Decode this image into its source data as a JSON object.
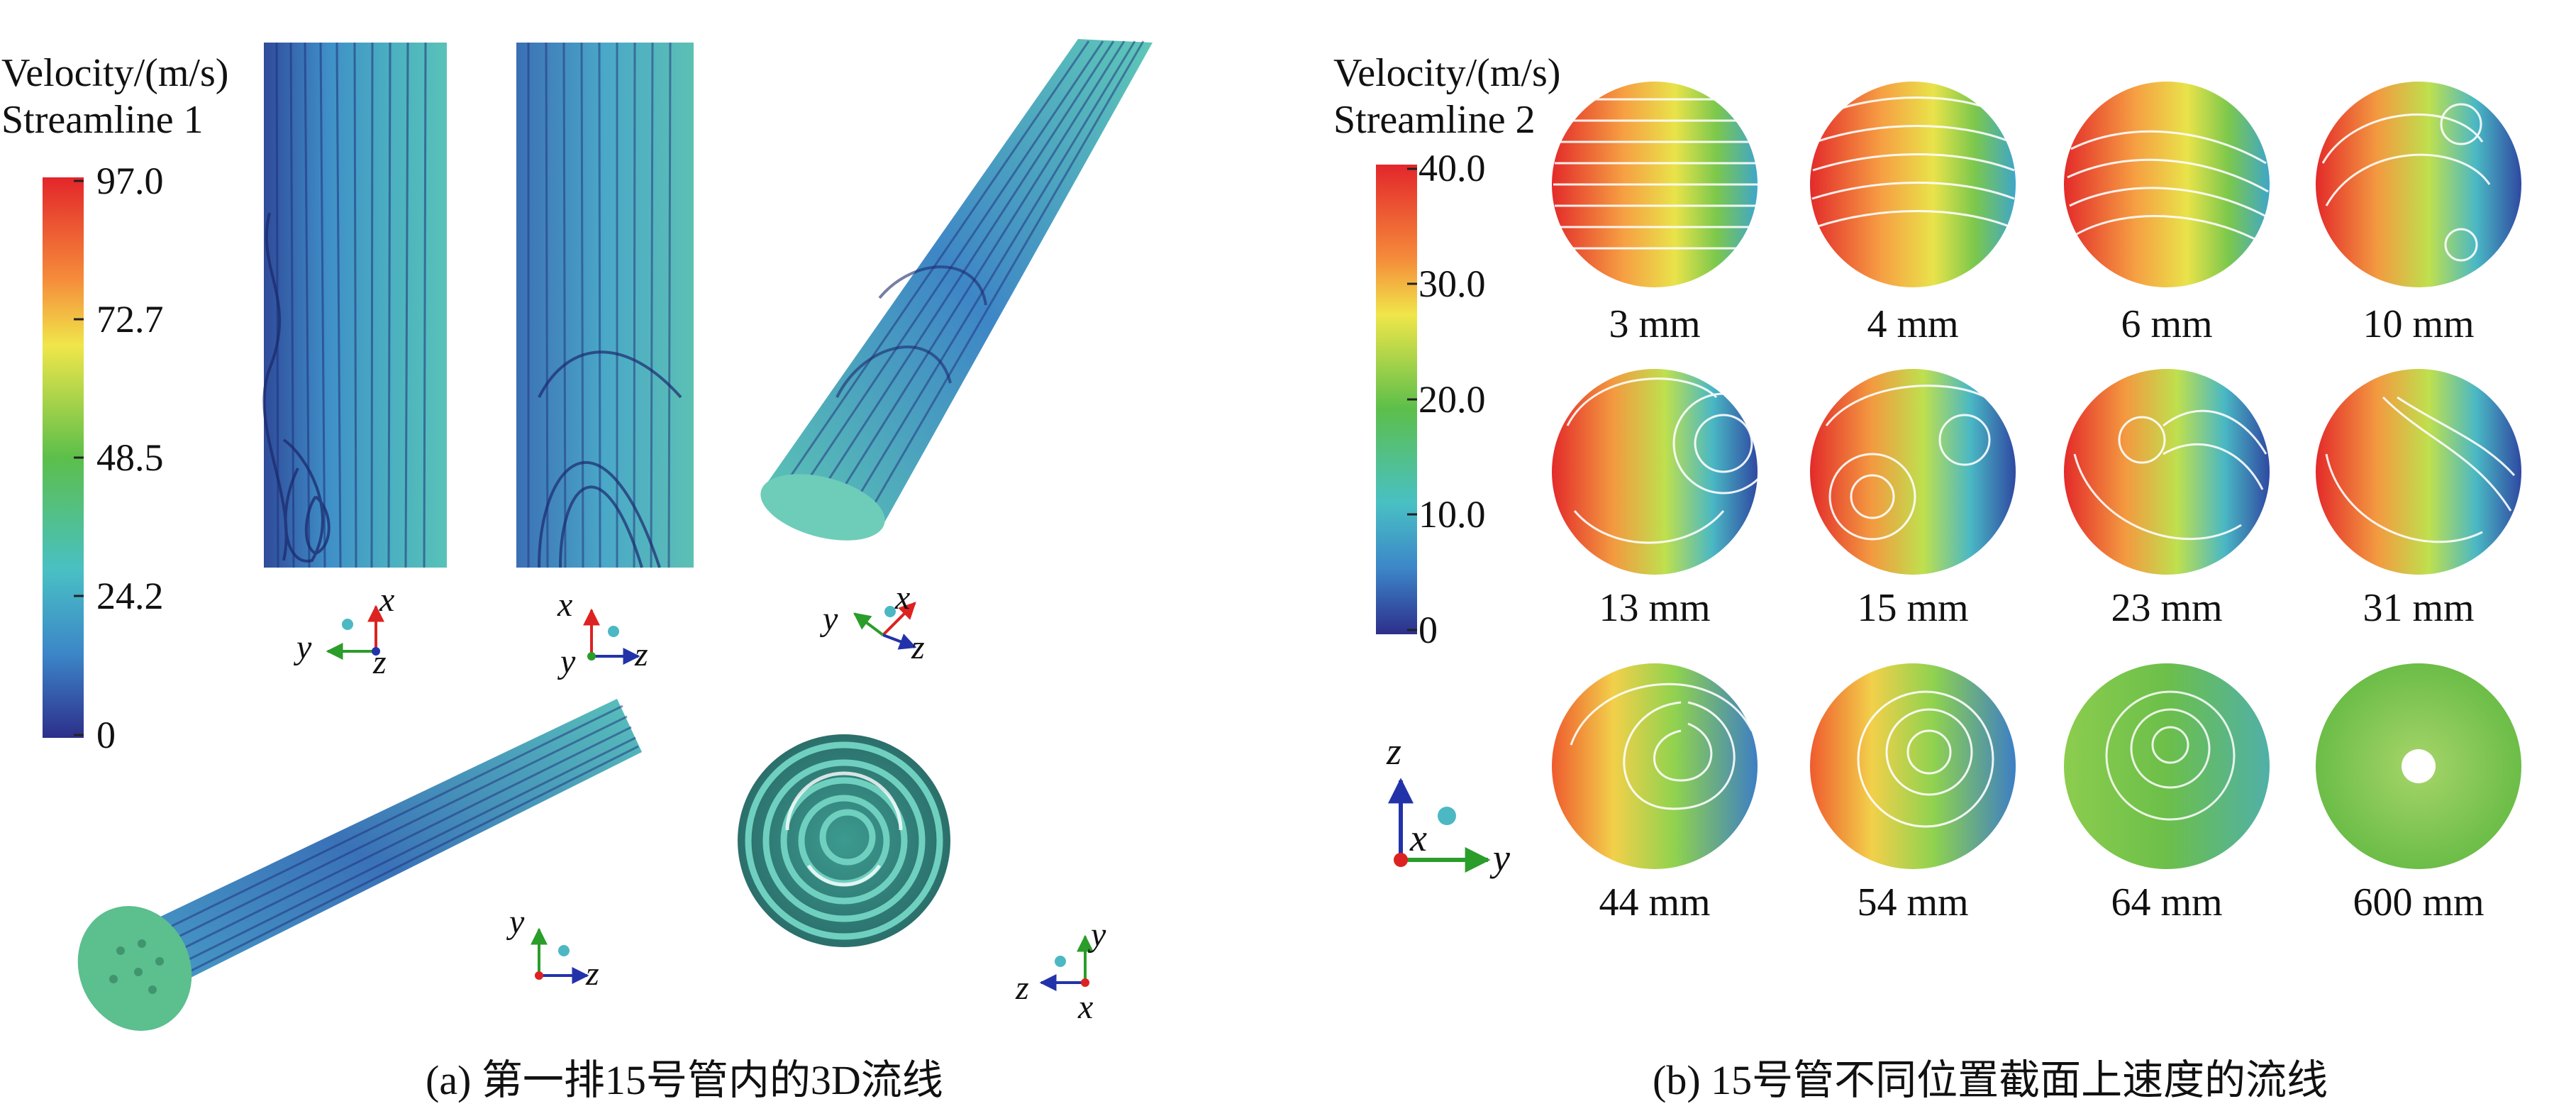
{
  "panel_a": {
    "colorbar": {
      "title_line1": "Velocity/(m/s)",
      "title_line2": "Streamline 1",
      "ticks": [
        "97.0",
        "72.7",
        "48.5",
        "24.2",
        "0"
      ]
    },
    "caption": "(a) 第一排15号管内的3D流线",
    "triads": [
      {
        "labels": [
          "x",
          "y",
          "z"
        ]
      },
      {
        "labels": [
          "x",
          "y",
          "z"
        ]
      },
      {
        "labels": [
          "x",
          "y",
          "z"
        ]
      },
      {
        "labels": [
          "y",
          "z"
        ]
      },
      {
        "labels": [
          "y",
          "z",
          "x"
        ]
      }
    ]
  },
  "panel_b": {
    "colorbar": {
      "title_line1": "Velocity/(m/s)",
      "title_line2": "Streamline 2",
      "ticks": [
        "40.0",
        "30.0",
        "20.0",
        "10.0",
        "0"
      ]
    },
    "caption": "(b) 15号管不同位置截面上速度的流线",
    "sections": [
      "3 mm",
      "4 mm",
      "6 mm",
      "10 mm",
      "13 mm",
      "15 mm",
      "23 mm",
      "31 mm",
      "44 mm",
      "54 mm",
      "64 mm",
      "600 mm"
    ],
    "triad": {
      "labels": [
        "z",
        "x",
        "y"
      ]
    }
  },
  "colors": {
    "high": "#d7191c",
    "mid_high": "#fdae61",
    "mid": "#a6d96a",
    "mid_low": "#5fbfbf",
    "low": "#2b3990",
    "axis_x": "#d22",
    "axis_y": "#2a9d2a",
    "axis_z": "#2233aa"
  }
}
